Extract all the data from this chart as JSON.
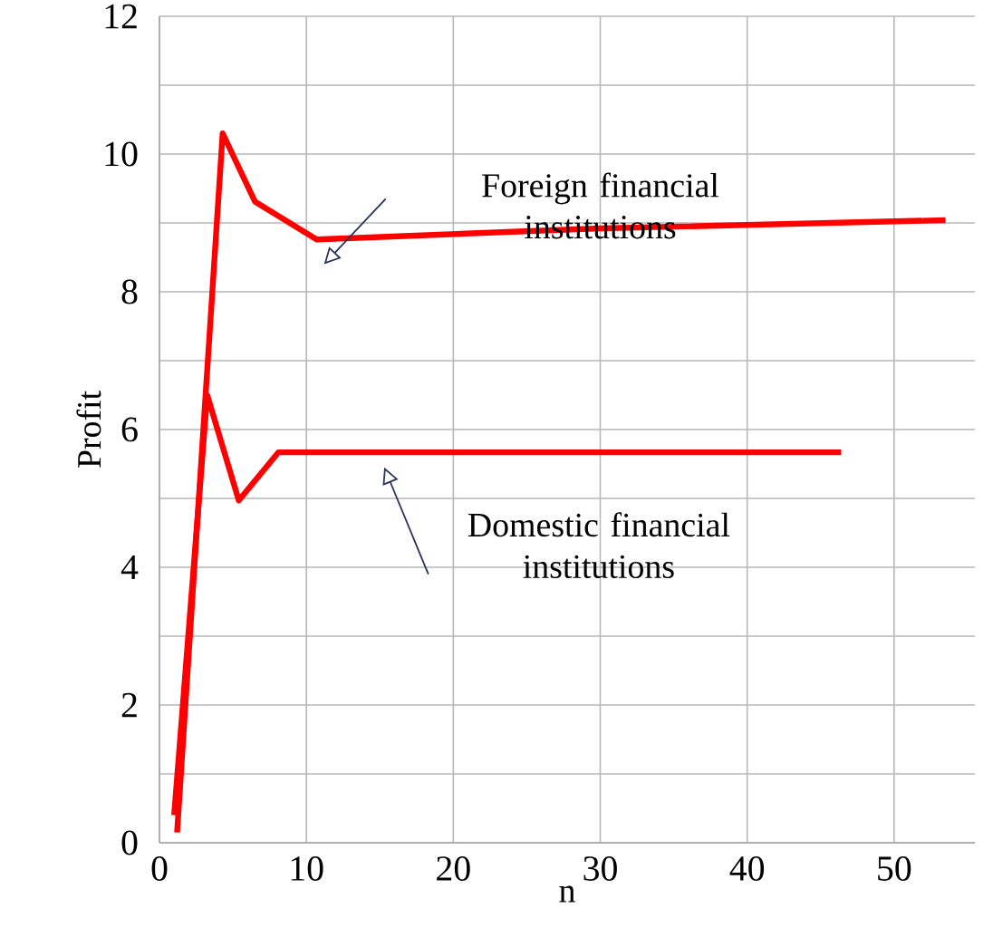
{
  "chart_data": {
    "type": "line",
    "xlabel": "n",
    "ylabel": "Profit",
    "series": [
      {
        "color": "#ff0000",
        "x": [
          1.2,
          4.3,
          6.5,
          10.7,
          30,
          53.5
        ],
        "values": [
          0.15,
          10.3,
          9.31,
          8.76,
          8.92,
          9.04
        ]
      },
      {
        "color": "#ff0000",
        "x": [
          1.0,
          3.25,
          5.4,
          8.1,
          46.4
        ],
        "values": [
          0.4,
          6.5,
          4.97,
          5.67,
          5.67
        ]
      }
    ],
    "xlim": [
      0,
      55.5
    ],
    "xticks": [
      0,
      10,
      20,
      30,
      40,
      50
    ],
    "ylim": [
      0,
      12
    ],
    "yticks": [
      0,
      {
        "value": 1,
        "label": null
      },
      2,
      {
        "value": 3,
        "label": null
      },
      4,
      {
        "value": 5,
        "label": null
      },
      6,
      {
        "value": 7,
        "label": null
      },
      8,
      {
        "value": 9,
        "label": null
      },
      10,
      {
        "value": 11,
        "label": null
      },
      12
    ],
    "grid": true,
    "marker": "none",
    "line_style": "solid",
    "annotations": [
      "Foreign financial institutions",
      "Domestic financial institutions"
    ]
  }
}
